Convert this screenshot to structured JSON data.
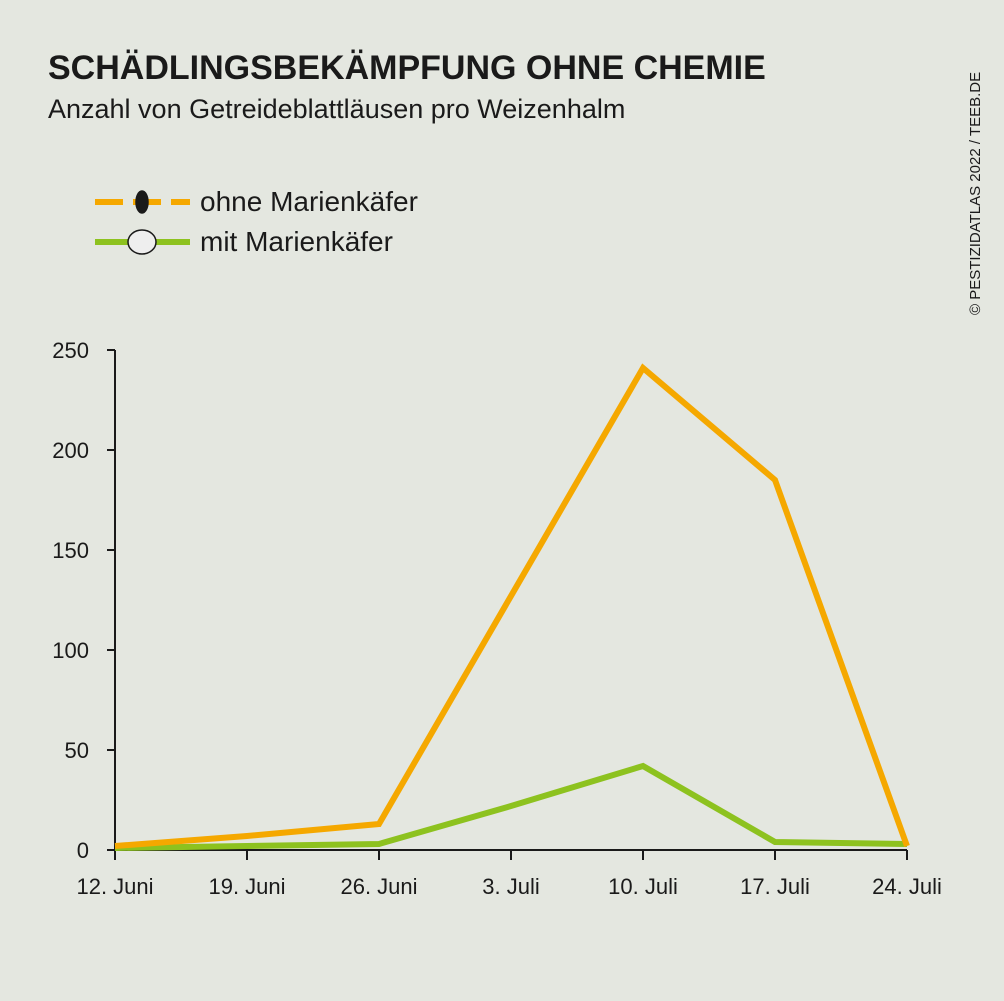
{
  "chart_data": {
    "type": "line",
    "title": "SCHÄDLINGSBEKÄMPFUNG OHNE CHEMIE",
    "subtitle": "Anzahl von Getreideblattläusen pro Weizenhalm",
    "source": "© PESTIZIDATLAS 2022 / TEEB.DE",
    "categories": [
      "12. Juni",
      "19. Juni",
      "26. Juni",
      "3. Juli",
      "10. Juli",
      "17. Juli",
      "24. Juli"
    ],
    "series": [
      {
        "name": "ohne Marienkäfer",
        "color": "#f5a800",
        "values": [
          2,
          7,
          13,
          127,
          241,
          185,
          2
        ]
      },
      {
        "name": "mit Marienkäfer",
        "color": "#8dc21f",
        "values": [
          1,
          2,
          3,
          22,
          42,
          4,
          3
        ]
      }
    ],
    "ylim": [
      0,
      250
    ],
    "yticks": [
      0,
      50,
      100,
      150,
      200,
      250
    ],
    "grid": false,
    "legend": "top-left"
  }
}
